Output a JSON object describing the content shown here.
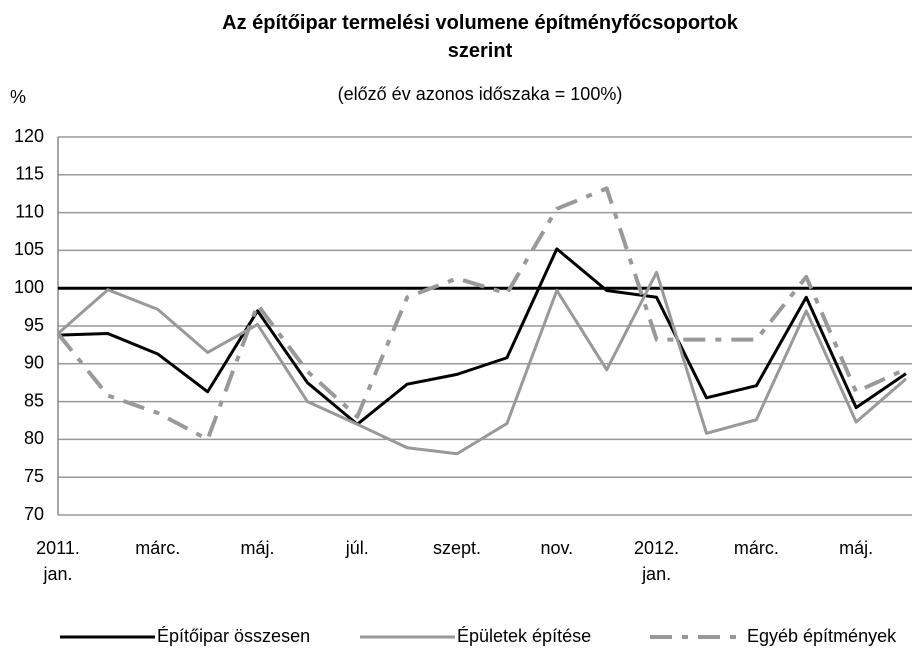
{
  "chart_data": {
    "type": "line",
    "title": "Az építőipar termelési volumene építményfőcsoportok szerint",
    "subtitle": "(előző év azonos időszaka = 100%)",
    "y_label": "%",
    "categories": [
      "2011.\njan.",
      null,
      "márc.",
      null,
      "máj.",
      null,
      "júl.",
      null,
      "szept.",
      null,
      "nov.",
      null,
      "2012.\njan.",
      null,
      "márc.",
      null,
      "máj.",
      null
    ],
    "series": [
      {
        "name": "Építőipar összesen",
        "color": "#000000",
        "dash": "none",
        "width": 3,
        "values": [
          93.8,
          94,
          91.3,
          86.3,
          97,
          87.5,
          82,
          87.3,
          88.6,
          90.8,
          105.2,
          99.7,
          98.8,
          85.5,
          87.1,
          98.8,
          84.2,
          88.7
        ]
      },
      {
        "name": "Épületek építése",
        "color": "#999999",
        "dash": "none",
        "width": 3,
        "values": [
          94,
          99.8,
          97.2,
          91.5,
          95.2,
          85,
          82,
          78.9,
          78.1,
          82.1,
          99.7,
          89.2,
          102.1,
          80.8,
          82.6,
          97,
          82.3,
          88
        ]
      },
      {
        "name": "Egyéb építmények",
        "color": "#999999",
        "dash": "22 10 6 10",
        "width": 4,
        "values": [
          94,
          85.8,
          83.5,
          80,
          97.8,
          89,
          83,
          98.8,
          101.3,
          99.3,
          110.5,
          113.2,
          93.2,
          93.2,
          93.2,
          101.5,
          86.3,
          89.3
        ]
      }
    ],
    "reference_line": 100,
    "ylim": [
      70,
      120
    ],
    "yticks": [
      70,
      75,
      80,
      85,
      90,
      95,
      100,
      105,
      110,
      115,
      120
    ],
    "grid": true,
    "legend": "bottom"
  }
}
